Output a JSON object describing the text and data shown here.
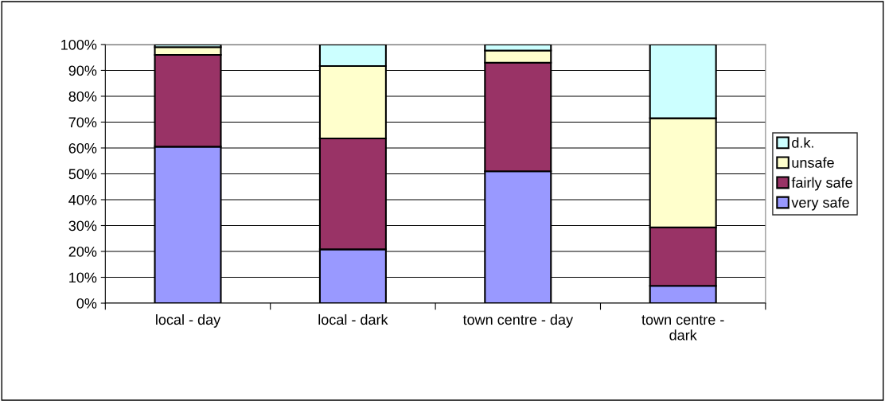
{
  "chart_data": {
    "type": "bar",
    "stacked": true,
    "categories": [
      "local - day",
      "local - dark",
      "town centre - day",
      "town centre -\ndark"
    ],
    "series": [
      {
        "name": "very safe",
        "color": "#9999ff",
        "values": [
          60.5,
          20.8,
          51,
          6.7
        ]
      },
      {
        "name": "fairly safe",
        "color": "#993366",
        "values": [
          35.5,
          42.9,
          42,
          22.6
        ]
      },
      {
        "name": "unsafe",
        "color": "#ffffcc",
        "values": [
          3,
          28,
          4.7,
          42.2
        ]
      },
      {
        "name": "d.k.",
        "color": "#ccffff",
        "values": [
          1,
          8.3,
          2.3,
          28.5
        ]
      }
    ],
    "ylim": [
      0,
      100
    ],
    "yticks": [
      {
        "value": 0,
        "label": "0%"
      },
      {
        "value": 10,
        "label": "10%"
      },
      {
        "value": 20,
        "label": "20%"
      },
      {
        "value": 30,
        "label": "30%"
      },
      {
        "value": 40,
        "label": "40%"
      },
      {
        "value": 50,
        "label": "50%"
      },
      {
        "value": 60,
        "label": "60%"
      },
      {
        "value": 70,
        "label": "70%"
      },
      {
        "value": 80,
        "label": "80%"
      },
      {
        "value": 90,
        "label": "90%"
      },
      {
        "value": 100,
        "label": "100%"
      }
    ],
    "grid": "y",
    "legend": "right"
  }
}
